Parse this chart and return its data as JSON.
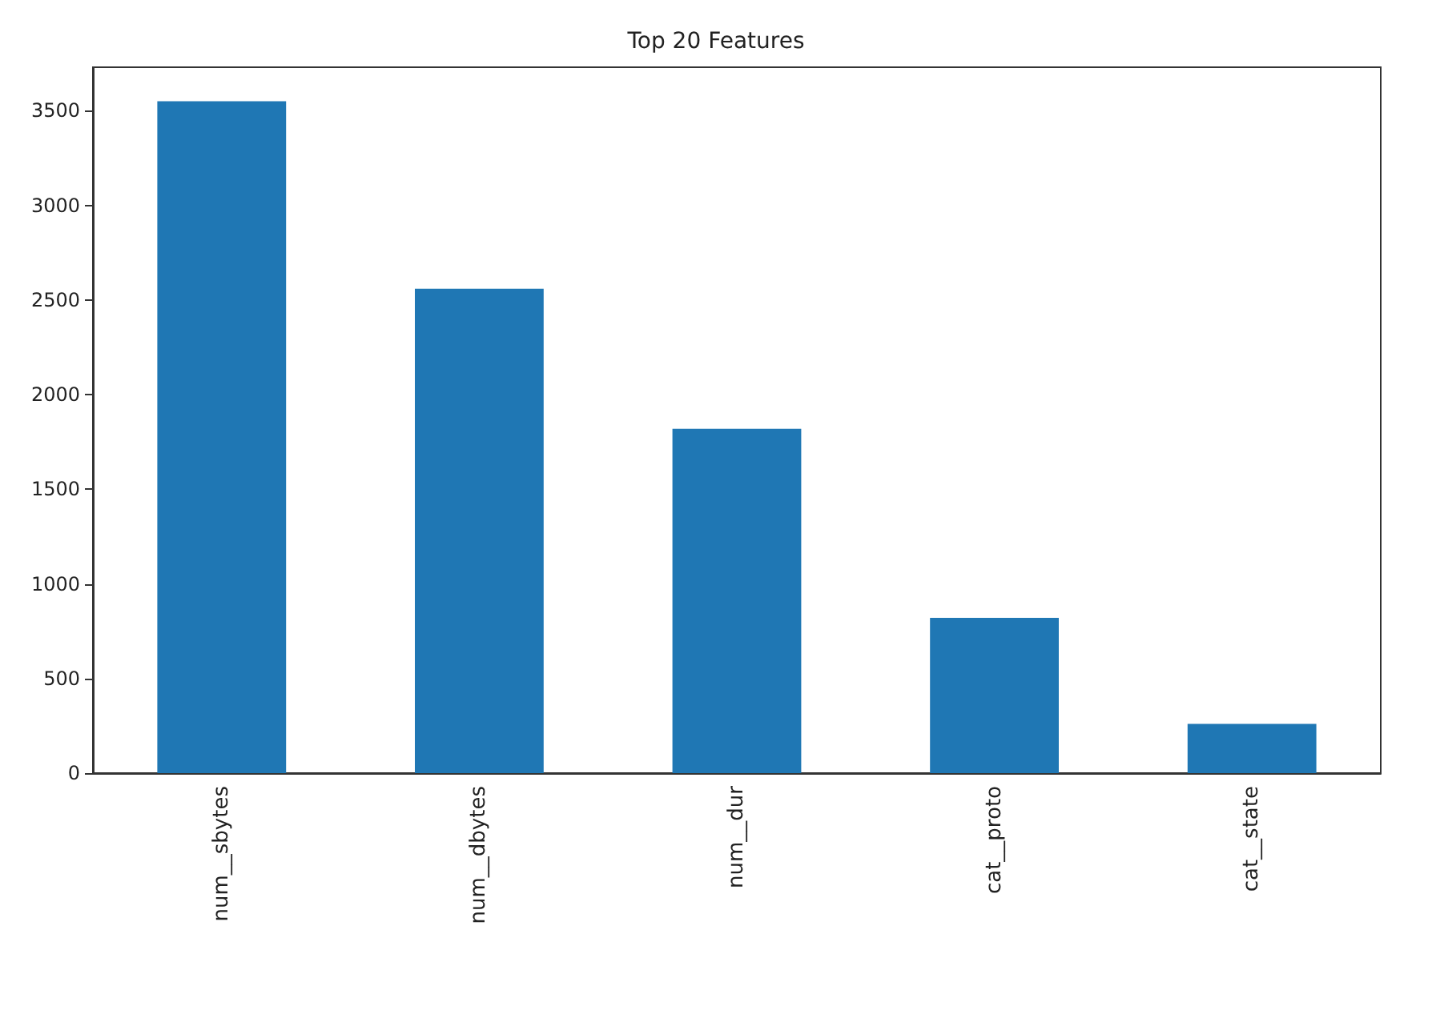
{
  "chart_data": {
    "type": "bar",
    "title": "Top 20 Features",
    "categories": [
      "num__sbytes",
      "num__dbytes",
      "num__dur",
      "cat__proto",
      "cat__state"
    ],
    "values": [
      3550,
      2560,
      1820,
      820,
      260
    ],
    "color": "#1f77b4",
    "ylim": [
      0,
      3730
    ],
    "yticks": [
      0,
      500,
      1000,
      1500,
      2000,
      2500,
      3000,
      3500
    ],
    "grid": false
  }
}
